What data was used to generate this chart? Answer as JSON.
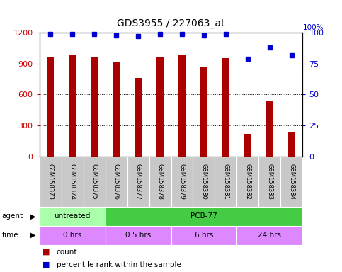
{
  "title": "GDS3955 / 227063_at",
  "samples": [
    "GSM158373",
    "GSM158374",
    "GSM158375",
    "GSM158376",
    "GSM158377",
    "GSM158378",
    "GSM158379",
    "GSM158380",
    "GSM158381",
    "GSM158382",
    "GSM158383",
    "GSM158384"
  ],
  "counts": [
    960,
    990,
    960,
    910,
    760,
    960,
    980,
    870,
    950,
    220,
    540,
    240
  ],
  "percentile_ranks": [
    99,
    99,
    99,
    98,
    97,
    99,
    99,
    98,
    99,
    79,
    88,
    82
  ],
  "bar_color": "#aa0000",
  "dot_color": "#0000cc",
  "left_yaxis": {
    "min": 0,
    "max": 1200,
    "ticks": [
      0,
      300,
      600,
      900,
      1200
    ],
    "color": "#cc0000"
  },
  "right_yaxis": {
    "min": 0,
    "max": 100,
    "ticks": [
      0,
      25,
      50,
      75,
      100
    ],
    "color": "#0000cc"
  },
  "agent_row": [
    {
      "label": "untreated",
      "start": 0,
      "end": 3,
      "color": "#aaffaa"
    },
    {
      "label": "PCB-77",
      "start": 3,
      "end": 12,
      "color": "#44cc44"
    }
  ],
  "time_row": [
    {
      "label": "0 hrs",
      "start": 0,
      "end": 3,
      "color": "#dd88ff"
    },
    {
      "label": "0.5 hrs",
      "start": 3,
      "end": 6,
      "color": "#dd88ff"
    },
    {
      "label": "6 hrs",
      "start": 6,
      "end": 9,
      "color": "#dd88ff"
    },
    {
      "label": "24 hrs",
      "start": 9,
      "end": 12,
      "color": "#dd88ff"
    }
  ],
  "legend_count_color": "#aa0000",
  "legend_dot_color": "#0000cc",
  "bg_color": "#ffffff",
  "bar_width": 0.35
}
